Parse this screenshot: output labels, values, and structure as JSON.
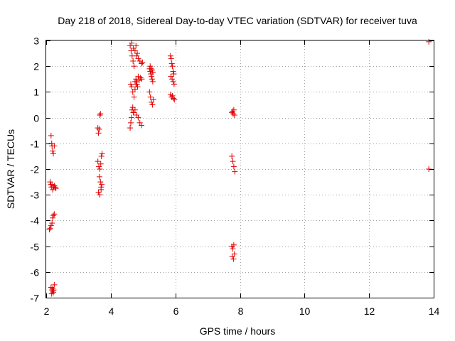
{
  "chart_data": {
    "type": "scatter",
    "title": "Day 218 of 2018, Sidereal Day-to-day VTEC variation (SDTVAR) for receiver tuva",
    "xlabel": "GPS time / hours",
    "ylabel": "SDTVAR / TECUs",
    "xlim": [
      2,
      14
    ],
    "ylim": [
      -7,
      3
    ],
    "xticks": [
      2,
      4,
      6,
      8,
      10,
      12,
      14
    ],
    "yticks": [
      -7,
      -6,
      -5,
      -4,
      -3,
      -2,
      -1,
      0,
      1,
      2,
      3
    ],
    "grid": true,
    "marker": "plus",
    "color": "#e00000",
    "series": [
      {
        "name": "SDTVAR",
        "x": [
          2.15,
          2.17,
          2.18,
          2.2,
          2.22,
          2.25,
          2.12,
          2.14,
          2.16,
          2.18,
          2.2,
          2.23,
          2.25,
          2.28,
          2.3,
          2.1,
          2.12,
          2.15,
          2.18,
          2.2,
          2.22,
          2.25,
          2.15,
          2.18,
          2.2,
          2.22,
          2.25,
          2.17,
          2.2,
          2.23,
          3.6,
          3.62,
          3.64,
          3.66,
          3.68,
          3.6,
          3.63,
          3.66,
          3.69,
          3.71,
          3.73,
          3.65,
          3.68,
          3.7,
          3.72,
          3.62,
          3.66,
          3.7,
          4.6,
          4.62,
          4.64,
          4.66,
          4.68,
          4.7,
          4.6,
          4.63,
          4.66,
          4.69,
          4.72,
          4.62,
          4.65,
          4.68,
          4.72,
          4.75,
          4.78,
          4.8,
          4.83,
          4.65,
          4.7,
          4.75,
          4.78,
          4.82,
          4.7,
          4.75,
          4.8,
          4.85,
          4.9,
          4.95,
          4.75,
          4.78,
          4.81,
          4.85,
          4.88,
          4.92,
          4.96,
          4.8,
          4.85,
          4.9,
          4.95,
          4.98,
          5.2,
          5.22,
          5.24,
          5.26,
          5.28,
          5.3,
          5.2,
          5.23,
          5.26,
          5.29,
          5.32,
          5.22,
          5.25,
          5.28,
          5.3,
          5.85,
          5.87,
          5.89,
          5.91,
          5.93,
          5.95,
          5.85,
          5.88,
          5.91,
          5.94,
          5.97,
          5.86,
          5.9,
          5.93,
          5.96,
          7.75,
          7.77,
          7.79,
          7.81,
          7.83,
          7.75,
          7.78,
          7.81,
          7.84,
          7.75,
          7.78,
          7.81,
          7.76,
          7.8,
          7.83,
          13.85,
          13.85
        ],
        "y": [
          -0.7,
          -1.0,
          -1.1,
          -1.3,
          -1.4,
          -1.1,
          -2.5,
          -2.6,
          -2.7,
          -2.6,
          -2.8,
          -2.7,
          -2.65,
          -2.7,
          -2.75,
          -4.35,
          -4.3,
          -4.2,
          -4.1,
          -3.9,
          -3.8,
          -3.75,
          -6.6,
          -6.7,
          -6.75,
          -6.8,
          -6.5,
          -6.85,
          -6.65,
          -6.7,
          -0.4,
          -0.6,
          -0.45,
          0.1,
          0.15,
          -1.7,
          -1.9,
          -2.0,
          -1.8,
          -1.5,
          -1.4,
          -2.3,
          -2.5,
          -2.7,
          -2.6,
          -2.9,
          -3.0,
          -2.8,
          -0.4,
          -0.2,
          0.0,
          0.3,
          0.4,
          0.2,
          2.8,
          2.6,
          2.4,
          2.2,
          2.0,
          1.3,
          1.2,
          1.0,
          0.8,
          1.1,
          1.3,
          1.4,
          1.2,
          2.9,
          2.7,
          2.6,
          2.8,
          2.5,
          0.2,
          0.3,
          0.1,
          0.0,
          -0.2,
          -0.3,
          1.4,
          1.5,
          1.3,
          1.6,
          1.45,
          1.55,
          1.5,
          2.4,
          2.3,
          2.2,
          2.1,
          2.15,
          1.9,
          1.8,
          1.7,
          1.6,
          1.5,
          1.4,
          1.0,
          0.8,
          0.6,
          0.5,
          0.7,
          2.0,
          1.9,
          1.85,
          1.75,
          2.4,
          2.3,
          2.1,
          2.0,
          1.8,
          1.7,
          0.9,
          0.8,
          0.85,
          0.75,
          0.7,
          1.6,
          1.5,
          1.4,
          1.3,
          0.2,
          0.25,
          0.15,
          0.3,
          0.1,
          -1.5,
          -1.7,
          -1.9,
          -2.1,
          -5.0,
          -5.1,
          -4.95,
          -5.4,
          -5.5,
          -5.3,
          2.95,
          -2.0
        ]
      }
    ]
  }
}
